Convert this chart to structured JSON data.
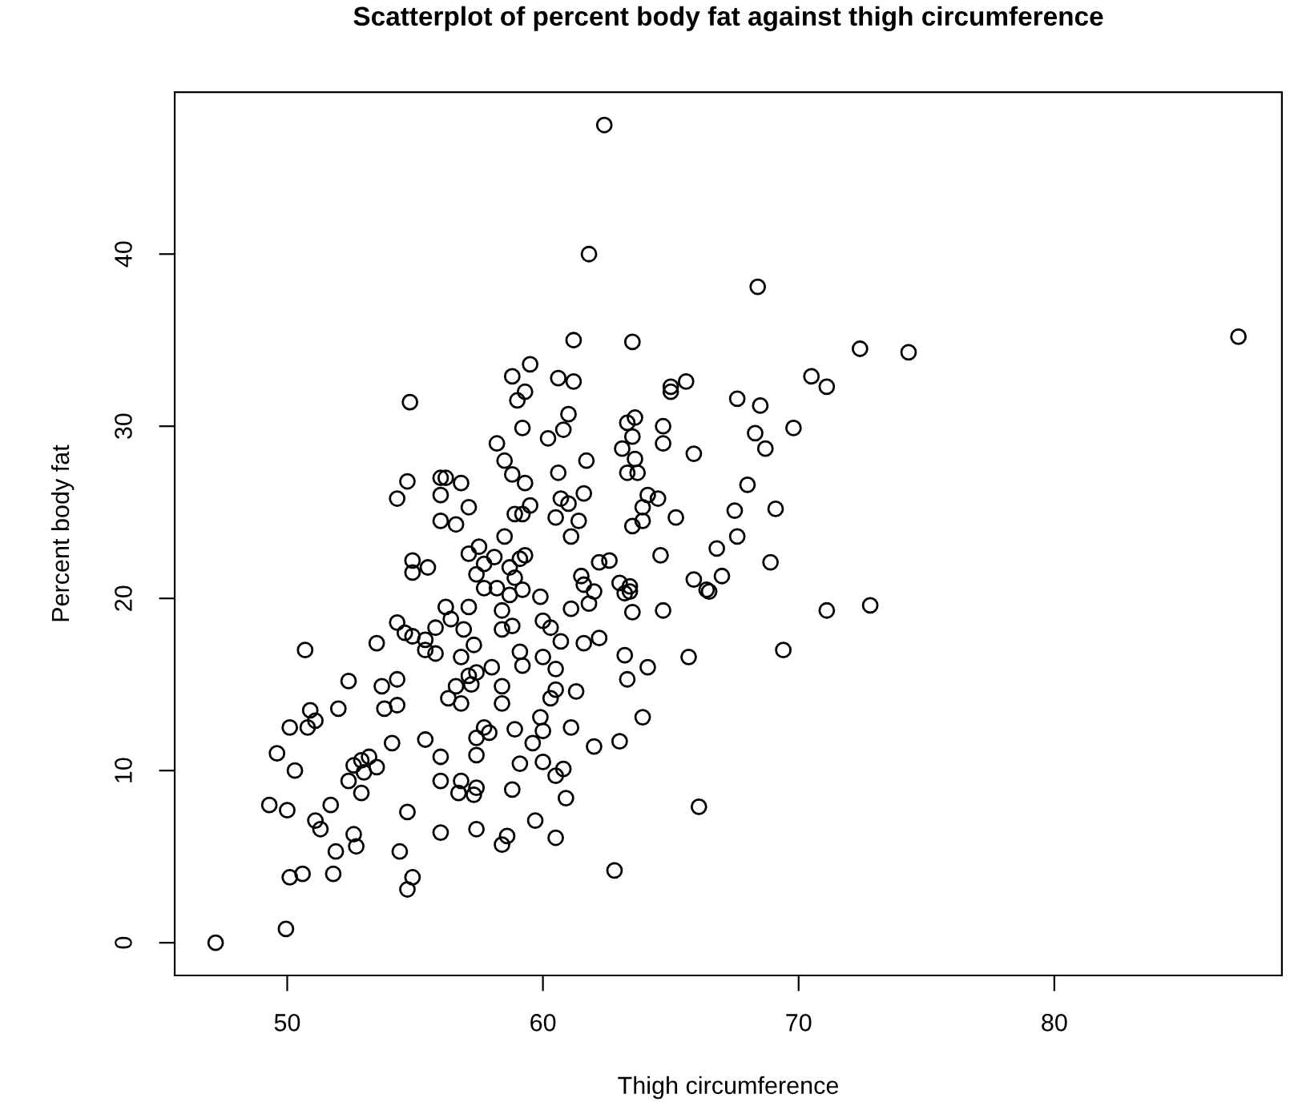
{
  "chart_data": {
    "type": "scatter",
    "title": "Scatterplot of percent body fat against thigh circumference",
    "xlabel": "Thigh circumference",
    "ylabel": "Percent body fat",
    "x": [
      47.2,
      49.95,
      50.1,
      50.6,
      51.8,
      54.7,
      54.9,
      54.4,
      51.9,
      52.6,
      52.7,
      51.1,
      51.3,
      51.7,
      49.3,
      50.0,
      52.9,
      54.7,
      56.0,
      57.4,
      58.4,
      58.6,
      59.7,
      60.5,
      62.8,
      66.1,
      52.6,
      52.4,
      53.0,
      52.9,
      53.2,
      53.5,
      50.3,
      49.6,
      50.1,
      50.8,
      50.9,
      51.1,
      52.0,
      50.7,
      52.4,
      53.5,
      53.7,
      54.3,
      53.8,
      54.3,
      54.1,
      55.4,
      56.0,
      56.0,
      56.8,
      56.7,
      57.3,
      57.4,
      57.4,
      57.4,
      57.7,
      57.9,
      58.8,
      59.1,
      59.6,
      60.0,
      60.5,
      60.8,
      60.9,
      60.0,
      59.9,
      58.9,
      61.1,
      62.0,
      63.0,
      63.9,
      58.4,
      58.4,
      56.8,
      56.3,
      56.6,
      57.2,
      57.1,
      57.4,
      58.0,
      56.8,
      55.8,
      55.4,
      55.4,
      54.9,
      54.6,
      54.3,
      55.8,
      56.4,
      56.2,
      57.1,
      56.9,
      57.3,
      58.4,
      58.8,
      59.2,
      58.4,
      58.7,
      58.2,
      57.7,
      57.4,
      57.7,
      57.1,
      57.5,
      58.1,
      58.9,
      58.7,
      59.1,
      59.3,
      58.5,
      56.0,
      56.6,
      54.9,
      55.5,
      54.9,
      59.9,
      60.0,
      60.3,
      60.7,
      60.0,
      60.5,
      59.2,
      59.1,
      60.5,
      60.3,
      61.3,
      61.1,
      61.6,
      62.2,
      61.8,
      62.0,
      61.5,
      61.6,
      62.2,
      62.6,
      63.0,
      63.4,
      63.4,
      63.2,
      63.5,
      63.2,
      64.1,
      63.3,
      64.7,
      65.7,
      64.6,
      65.9,
      66.4,
      66.8,
      65.2,
      63.9,
      63.5,
      61.1,
      61.4,
      60.5,
      67.5,
      69.1,
      67.6,
      68.9,
      67.0,
      66.5,
      71.1,
      72.8,
      69.4,
      62.4,
      61.8,
      61.2,
      63.5,
      59.5,
      58.8,
      60.6,
      61.2,
      65.6,
      65.0,
      65.0,
      59.3,
      59.0,
      54.8,
      61.0,
      60.8,
      59.2,
      60.2,
      58.2,
      63.3,
      63.6,
      63.5,
      64.7,
      64.7,
      65.9,
      63.1,
      63.6,
      58.5,
      58.8,
      59.3,
      60.6,
      61.7,
      63.3,
      63.7,
      61.6,
      61.0,
      60.7,
      64.1,
      64.5,
      63.9,
      54.3,
      54.7,
      56.0,
      56.2,
      56.0,
      56.8,
      57.1,
      58.9,
      59.2,
      59.5,
      68.4,
      72.4,
      74.3,
      87.2,
      70.5,
      71.1,
      67.6,
      68.5,
      68.3,
      68.7,
      69.8,
      68.0
    ],
    "values": [
      0.0,
      0.8,
      3.8,
      4.0,
      4.0,
      3.1,
      3.8,
      5.3,
      5.3,
      6.3,
      5.6,
      7.1,
      6.6,
      8.0,
      8.0,
      7.7,
      8.7,
      7.6,
      6.4,
      6.6,
      5.7,
      6.2,
      7.1,
      6.1,
      4.2,
      7.9,
      10.3,
      9.4,
      9.9,
      10.6,
      10.8,
      10.2,
      10.0,
      11.0,
      12.5,
      12.5,
      13.5,
      12.9,
      13.6,
      17.0,
      15.2,
      17.4,
      14.9,
      15.3,
      13.6,
      13.8,
      11.6,
      11.8,
      10.8,
      9.4,
      9.4,
      8.7,
      8.6,
      9.0,
      10.9,
      11.9,
      12.5,
      12.2,
      8.9,
      10.4,
      11.6,
      10.5,
      9.7,
      10.1,
      8.4,
      12.3,
      13.1,
      12.4,
      12.5,
      11.4,
      11.7,
      13.1,
      13.9,
      14.9,
      13.9,
      14.2,
      14.9,
      15.0,
      15.5,
      15.7,
      16.0,
      16.6,
      16.8,
      17.0,
      17.6,
      17.8,
      18.0,
      18.6,
      18.3,
      18.8,
      19.5,
      19.5,
      18.2,
      17.3,
      18.2,
      18.4,
      20.5,
      19.3,
      20.2,
      20.6,
      20.6,
      21.4,
      22.0,
      22.6,
      23.0,
      22.4,
      21.2,
      21.8,
      22.3,
      22.5,
      23.6,
      24.5,
      24.3,
      22.2,
      21.8,
      21.5,
      20.1,
      18.7,
      18.3,
      17.5,
      16.6,
      15.9,
      16.1,
      16.9,
      14.7,
      14.2,
      14.6,
      19.4,
      17.4,
      17.7,
      19.7,
      20.4,
      21.3,
      20.8,
      22.1,
      22.2,
      20.9,
      20.7,
      20.4,
      20.3,
      19.2,
      16.7,
      16.0,
      15.3,
      19.3,
      16.6,
      22.5,
      21.1,
      20.5,
      22.9,
      24.7,
      24.5,
      24.2,
      23.6,
      24.5,
      24.7,
      25.1,
      25.2,
      23.6,
      22.1,
      21.3,
      20.4,
      19.3,
      19.6,
      17.0,
      47.5,
      40.0,
      35.0,
      34.9,
      33.6,
      32.9,
      32.8,
      32.6,
      32.6,
      32.3,
      32.0,
      32.0,
      31.5,
      31.4,
      30.7,
      29.8,
      29.9,
      29.3,
      29.0,
      30.2,
      30.5,
      29.4,
      30.0,
      29.0,
      28.4,
      28.7,
      28.1,
      28.0,
      27.2,
      26.7,
      27.3,
      28.0,
      27.3,
      27.3,
      26.1,
      25.5,
      25.8,
      26.0,
      25.8,
      25.3,
      25.8,
      26.8,
      27.0,
      27.0,
      26.0,
      26.7,
      25.3,
      24.9,
      24.9,
      25.4,
      38.1,
      34.5,
      34.3,
      35.2,
      32.9,
      32.3,
      31.6,
      31.2,
      29.6,
      28.7,
      29.9,
      26.6
    ],
    "color": "#000000",
    "marker": "circle",
    "xlim": [
      45.6,
      88.9
    ],
    "ylim": [
      -1.9,
      49.4
    ],
    "xticks": [
      50,
      60,
      70,
      80
    ],
    "yticks": [
      0,
      10,
      20,
      30,
      40
    ],
    "grid": false
  }
}
